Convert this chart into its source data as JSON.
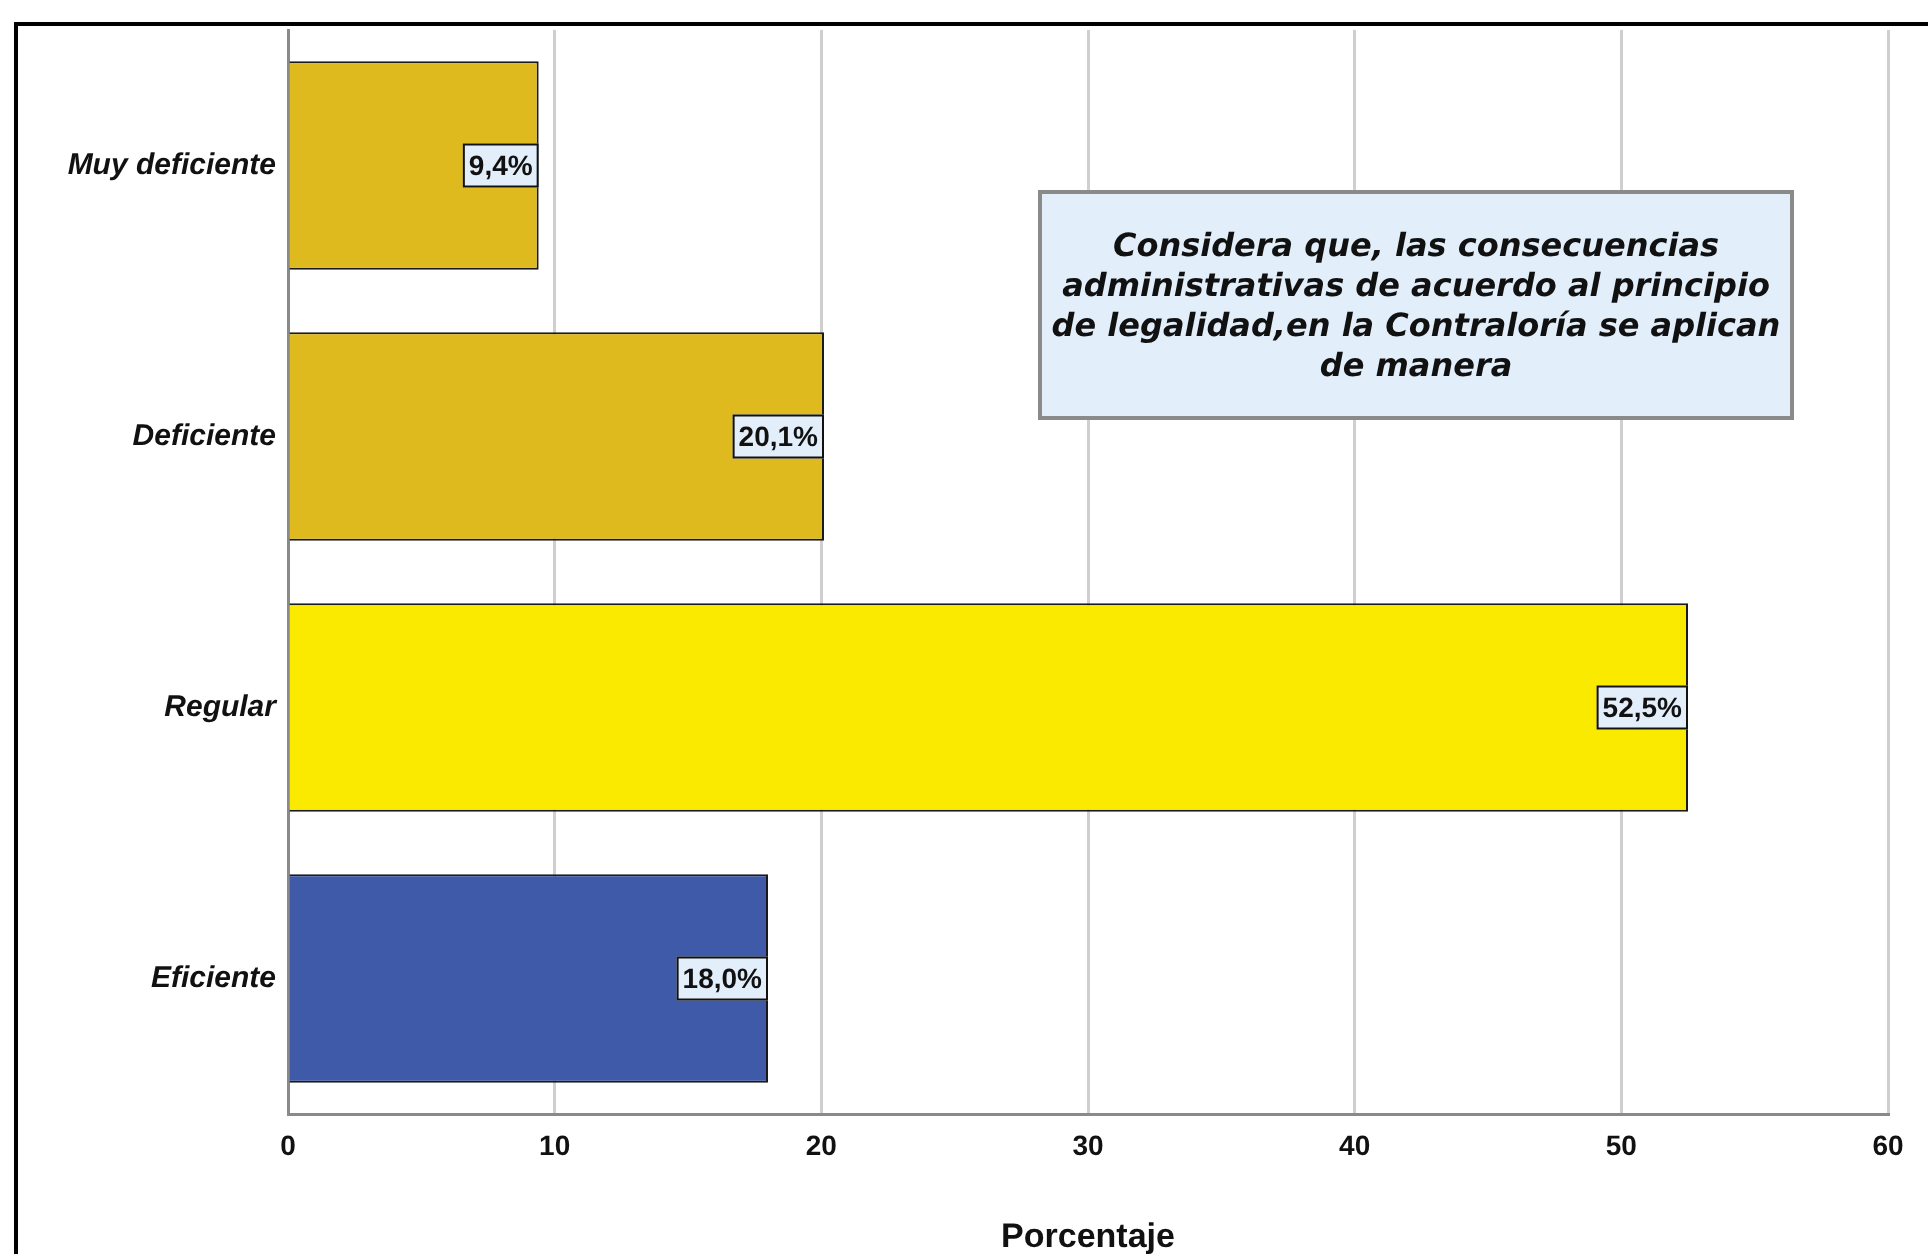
{
  "chart_data": {
    "type": "bar",
    "orientation": "horizontal",
    "title": "Considera que, las consecuencias administrativas de acuerdo al principio de legalidad,en la Contraloría se aplican de manera",
    "xlabel": "Porcentaje",
    "categories": [
      "Muy deficiente",
      "Deficiente",
      "Regular",
      "Eficiente"
    ],
    "values": [
      9.4,
      20.1,
      52.5,
      18.0
    ],
    "colors": [
      "#dfba1f",
      "#dfba1f",
      "#f9ea00",
      "#3e5aa8"
    ],
    "value_labels": [
      "9,4%",
      "20,1%",
      "52,5%",
      "18,0%"
    ],
    "xlim": [
      0,
      60
    ],
    "xticks": [
      0,
      10,
      20,
      30,
      40,
      50,
      60
    ],
    "grid": "x"
  }
}
